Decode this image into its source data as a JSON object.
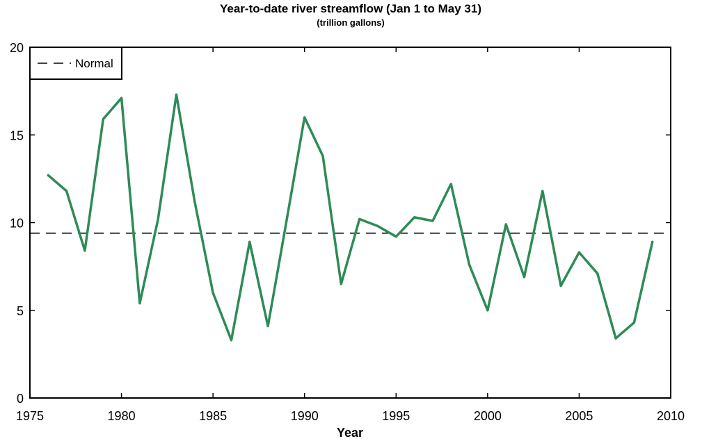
{
  "chart_data": {
    "type": "line",
    "title": "Year-to-date river streamflow (Jan 1 to May 31)",
    "subtitle": "(trillion gallons)",
    "xlabel": "Year",
    "ylabel": "",
    "xlim": [
      1975,
      2010
    ],
    "ylim": [
      0,
      20
    ],
    "xticks": [
      1975,
      1980,
      1985,
      1990,
      1995,
      2000,
      2005,
      2010
    ],
    "yticks": [
      0,
      5,
      10,
      15,
      20
    ],
    "grid": false,
    "legend_position": "top-left",
    "series": [
      {
        "color": "#2e8b57",
        "style": "solid",
        "x": [
          1976,
          1977,
          1978,
          1979,
          1980,
          1981,
          1982,
          1983,
          1984,
          1985,
          1986,
          1987,
          1988,
          1989,
          1990,
          1991,
          1992,
          1993,
          1994,
          1995,
          1996,
          1997,
          1998,
          1999,
          2000,
          2001,
          2002,
          2003,
          2004,
          2005,
          2006,
          2007,
          2008,
          2009
        ],
        "y": [
          12.7,
          11.8,
          8.4,
          15.9,
          17.1,
          5.4,
          10.2,
          17.3,
          11.2,
          6.0,
          3.3,
          8.9,
          4.1,
          10.0,
          16.0,
          13.8,
          6.5,
          10.2,
          9.8,
          9.2,
          10.3,
          10.1,
          12.2,
          7.6,
          5.0,
          9.9,
          6.9,
          11.8,
          6.4,
          8.3,
          7.1,
          3.4,
          4.3,
          8.9
        ]
      },
      {
        "name": "Normal",
        "color": "#000000",
        "style": "dashed",
        "x": [
          1975,
          2010
        ],
        "y": [
          9.4,
          9.4
        ]
      }
    ]
  }
}
